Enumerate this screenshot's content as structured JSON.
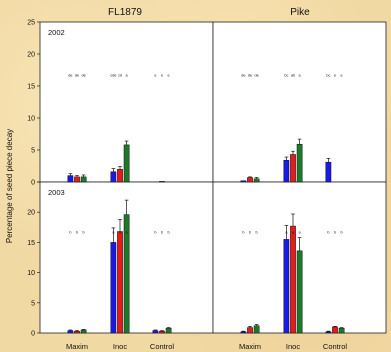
{
  "chart_data": {
    "type": "bar",
    "ylabel": "Percentage of seed piece decay",
    "ylim": [
      0,
      25
    ],
    "yticks": [
      0,
      5,
      10,
      15,
      20,
      25
    ],
    "categories": [
      "Maxim",
      "Inoc",
      "Control"
    ],
    "columns": [
      "FL1879",
      "Pike"
    ],
    "rows": [
      "2002",
      "2003"
    ],
    "series_colors": [
      "#1a1ae6",
      "#e61a1a",
      "#1a7a2a"
    ],
    "panels": [
      {
        "column": "FL1879",
        "row": "2002",
        "bars": [
          {
            "category": "Maxim",
            "values": [
              1.0,
              0.8,
              0.8
            ],
            "errors": [
              0.3,
              0.2,
              0.3
            ],
            "letters": [
              "de",
              "de",
              "de"
            ]
          },
          {
            "category": "Inoc",
            "values": [
              1.6,
              2.0,
              5.8
            ],
            "errors": [
              0.5,
              0.4,
              0.6
            ],
            "letters": [
              "cde",
              "cd",
              "a"
            ]
          },
          {
            "category": "Control",
            "values": [
              0.0,
              0.1,
              0.0
            ],
            "errors": [
              0.0,
              0.0,
              0.0
            ],
            "letters": [
              "e",
              "e",
              "e"
            ]
          }
        ]
      },
      {
        "column": "Pike",
        "row": "2002",
        "bars": [
          {
            "category": "Maxim",
            "values": [
              0.2,
              0.7,
              0.5
            ],
            "errors": [
              0.0,
              0.1,
              0.2
            ],
            "letters": [
              "de",
              "de",
              "de"
            ]
          },
          {
            "category": "Inoc",
            "values": [
              3.4,
              4.3,
              5.9
            ],
            "errors": [
              0.5,
              0.5,
              0.8
            ],
            "letters": [
              "bc",
              "ab",
              "a"
            ]
          },
          {
            "category": "Control",
            "values": [
              3.1,
              0.0,
              0.0
            ],
            "errors": [
              0.6,
              0.0,
              0.0
            ],
            "letters": [
              "bc",
              "e",
              "e"
            ]
          }
        ]
      },
      {
        "column": "FL1879",
        "row": "2003",
        "bars": [
          {
            "category": "Maxim",
            "values": [
              0.4,
              0.3,
              0.5
            ],
            "errors": [
              0.1,
              0.1,
              0.1
            ],
            "letters": [
              "b",
              "b",
              "b"
            ]
          },
          {
            "category": "Inoc",
            "values": [
              15.0,
              16.8,
              19.6
            ],
            "errors": [
              2.4,
              2.0,
              2.4
            ],
            "letters": [
              "a",
              "a",
              "a"
            ]
          },
          {
            "category": "Control",
            "values": [
              0.4,
              0.3,
              0.8
            ],
            "errors": [
              0.1,
              0.1,
              0.1
            ],
            "letters": [
              "b",
              "b",
              "b"
            ]
          }
        ]
      },
      {
        "column": "Pike",
        "row": "2003",
        "bars": [
          {
            "category": "Maxim",
            "values": [
              0.2,
              0.9,
              1.2
            ],
            "errors": [
              0.1,
              0.2,
              0.2
            ],
            "letters": [
              "b",
              "b",
              "b"
            ]
          },
          {
            "category": "Inoc",
            "values": [
              15.5,
              17.7,
              13.6
            ],
            "errors": [
              2.3,
              2.0,
              2.2
            ],
            "letters": [
              "a",
              "a",
              "a"
            ]
          },
          {
            "category": "Control",
            "values": [
              0.2,
              1.0,
              0.8
            ],
            "errors": [
              0.1,
              0.1,
              0.1
            ],
            "letters": [
              "b",
              "b",
              "b"
            ]
          }
        ]
      }
    ]
  }
}
